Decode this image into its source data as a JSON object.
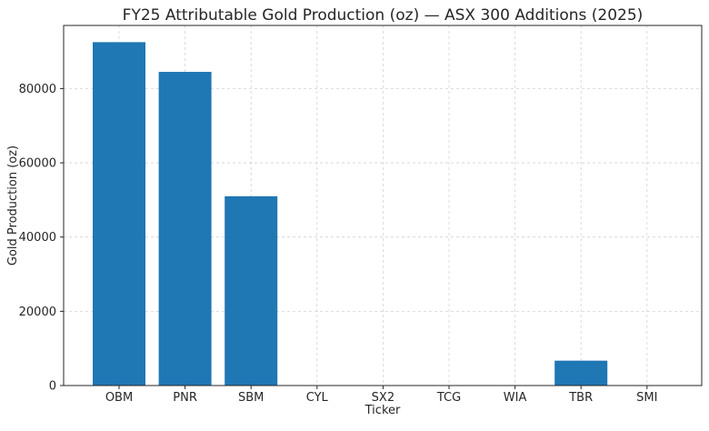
{
  "chart_data": {
    "type": "bar",
    "title": "FY25 Attributable Gold Production (oz) — ASX 300 Additions (2025)",
    "xlabel": "Ticker",
    "ylabel": "Gold Production (oz)",
    "categories": [
      "OBM",
      "PNR",
      "SBM",
      "CYL",
      "SX2",
      "TCG",
      "WIA",
      "TBR",
      "SMI"
    ],
    "values": [
      92500,
      84500,
      51000,
      0,
      0,
      0,
      0,
      6700,
      0
    ],
    "ylim": [
      0,
      97000
    ],
    "yticks": [
      0,
      20000,
      40000,
      60000,
      80000
    ],
    "ytick_labels": [
      "0",
      "20000",
      "40000",
      "60000",
      "80000"
    ],
    "grid": true,
    "bar_color": "#1f77b4"
  }
}
